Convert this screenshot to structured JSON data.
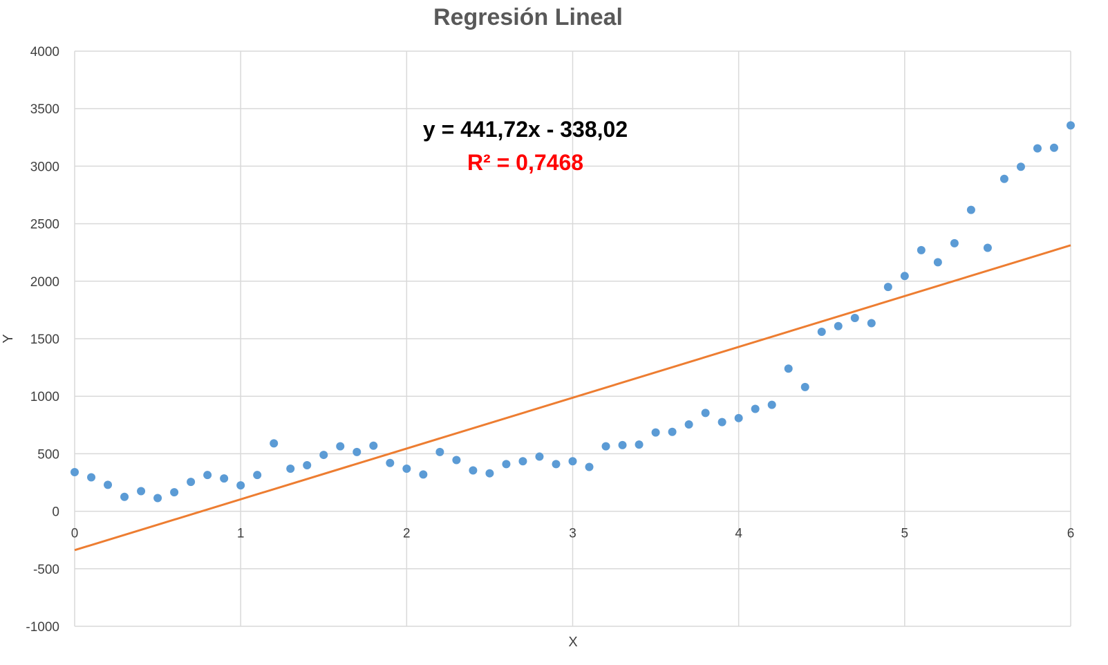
{
  "chart_data": {
    "type": "scatter",
    "title": "Regresión Lineal",
    "xlabel": "X",
    "ylabel": "Y",
    "xlim": [
      0,
      6
    ],
    "ylim": [
      -1000,
      4000
    ],
    "x_ticks": [
      "0",
      "1",
      "2",
      "3",
      "4",
      "5",
      "6"
    ],
    "y_ticks": [
      "4000",
      "3500",
      "3000",
      "2500",
      "2000",
      "1500",
      "1000",
      "500",
      "0",
      "-500",
      "-1000"
    ],
    "grid": true,
    "legend": "none",
    "series": [
      {
        "color": "#5B9BD5",
        "x": [
          0,
          0.1,
          0.2,
          0.3,
          0.4,
          0.5,
          0.6,
          0.7,
          0.8,
          0.9,
          1.0,
          1.1,
          1.2,
          1.3,
          1.4,
          1.5,
          1.6,
          1.7,
          1.8,
          1.9,
          2.0,
          2.1,
          2.2,
          2.3,
          2.4,
          2.5,
          2.6,
          2.7,
          2.8,
          2.9,
          3.0,
          3.1,
          3.2,
          3.3,
          3.4,
          3.5,
          3.6,
          3.7,
          3.8,
          3.9,
          4.0,
          4.1,
          4.2,
          4.3,
          4.4,
          4.5,
          4.6,
          4.7,
          4.8,
          4.9,
          5.0,
          5.1,
          5.2,
          5.3,
          5.4,
          5.5,
          5.6,
          5.7,
          5.8,
          5.9,
          6.0
        ],
        "y": [
          340,
          295,
          230,
          125,
          175,
          115,
          165,
          255,
          315,
          285,
          225,
          315,
          590,
          370,
          400,
          490,
          565,
          515,
          570,
          420,
          370,
          320,
          515,
          445,
          355,
          330,
          410,
          435,
          475,
          410,
          435,
          385,
          565,
          575,
          580,
          685,
          690,
          755,
          855,
          775,
          810,
          890,
          925,
          1240,
          1080,
          1560,
          1610,
          1680,
          1635,
          1950,
          2045,
          2270,
          2165,
          2330,
          2620,
          2290,
          2890,
          2995,
          3155,
          3160,
          3355
        ]
      }
    ],
    "trendline": {
      "type": "linear",
      "slope": 441.72,
      "intercept": -338.02,
      "color": "#ED7D31",
      "equation_label": "y = 441,72x - 338,02",
      "r2_label": "R² = 0,7468",
      "equation_color": "#000000",
      "r2_color": "#FF0000"
    },
    "gridline_color": "#D9D9D9",
    "title_color": "#595959"
  }
}
